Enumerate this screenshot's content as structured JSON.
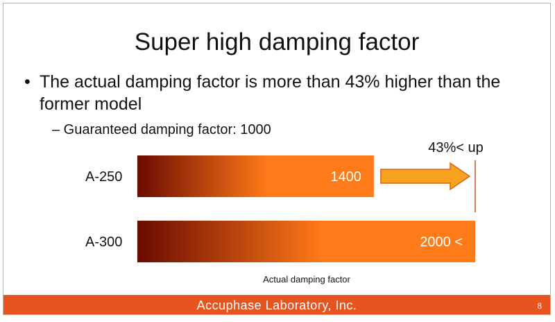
{
  "slide": {
    "title": "Super high damping factor",
    "bullet": "The actual damping factor is more than 43% higher than the former model",
    "sub_bullet": "– Guaranteed damping factor: 1000",
    "footer": "Accuphase  Laboratory,  Inc.",
    "page_number": "8"
  },
  "chart_data": {
    "type": "bar",
    "orientation": "horizontal",
    "categories": [
      "A-250",
      "A-300"
    ],
    "values": [
      1400,
      2000
    ],
    "data_labels": [
      "1400",
      "2000 <"
    ],
    "xlabel": "Actual damping factor",
    "annotation": "43%< up",
    "colors": {
      "bar_start": "#6a0a00",
      "bar_end": "#ff7a18",
      "arrow_fill": "#f6a21c",
      "arrow_stroke": "#d9641a",
      "marker": "#c0541e"
    }
  }
}
